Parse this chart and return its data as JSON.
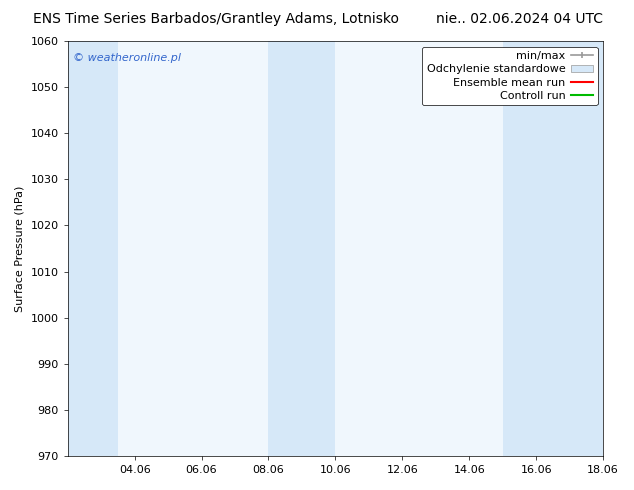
{
  "title_left": "ENS Time Series Barbados/Grantley Adams, Lotnisko",
  "title_right": "nie.. 02.06.2024 04 UTC",
  "ylabel": "Surface Pressure (hPa)",
  "ylim": [
    970,
    1060
  ],
  "yticks": [
    970,
    980,
    990,
    1000,
    1010,
    1020,
    1030,
    1040,
    1050,
    1060
  ],
  "xlim_start": 0,
  "xlim_end": 16,
  "xtick_labels": [
    "04.06",
    "06.06",
    "08.06",
    "10.06",
    "12.06",
    "14.06",
    "16.06",
    "18.06"
  ],
  "xtick_positions": [
    2,
    4,
    6,
    8,
    10,
    12,
    14,
    16
  ],
  "shaded_bands": [
    {
      "x_start": 0,
      "x_end": 1.5
    },
    {
      "x_start": 6,
      "x_end": 8
    },
    {
      "x_start": 13,
      "x_end": 16
    }
  ],
  "band_color": "#d6e8f8",
  "legend_items": [
    {
      "label": "min/max",
      "type": "errorbar",
      "color": "#999999"
    },
    {
      "label": "Odchylenie standardowe",
      "type": "fill",
      "color": "#d6e8f8"
    },
    {
      "label": "Ensemble mean run",
      "type": "line",
      "color": "#ff0000"
    },
    {
      "label": "Controll run",
      "type": "line",
      "color": "#00bb00"
    }
  ],
  "watermark": "© weatheronline.pl",
  "watermark_color": "#3366cc",
  "bg_color": "#ffffff",
  "plot_bg_color": "#f0f7fd",
  "title_fontsize": 10,
  "axis_label_fontsize": 8,
  "tick_fontsize": 8,
  "legend_fontsize": 8
}
